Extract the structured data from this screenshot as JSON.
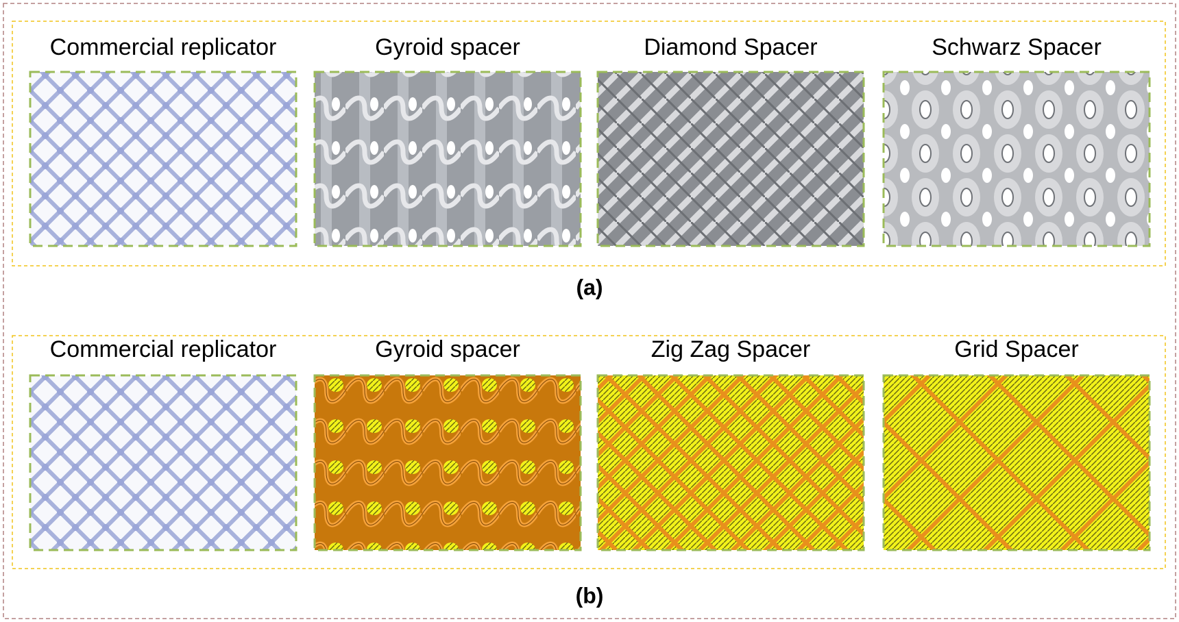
{
  "panels": [
    {
      "caption": "(a)",
      "items": [
        {
          "label": "Commercial replicator"
        },
        {
          "label": "Gyroid spacer"
        },
        {
          "label": "Diamond Spacer"
        },
        {
          "label": "Schwarz Spacer"
        }
      ]
    },
    {
      "caption": "(b)",
      "items": [
        {
          "label": "Commercial replicator"
        },
        {
          "label": "Gyroid spacer"
        },
        {
          "label": "Zig Zag Spacer"
        },
        {
          "label": "Grid Spacer"
        }
      ]
    }
  ]
}
